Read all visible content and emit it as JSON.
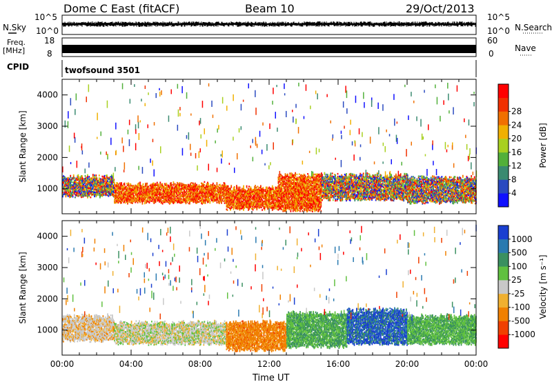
{
  "header": {
    "station": "Dome C East (fitACF)",
    "beam": "Beam 10",
    "date": "29/Oct/2013"
  },
  "labels": {
    "nsky": "N.Sky",
    "nsearch": "N.Search",
    "freq": "Freq.",
    "freq_unit": "[MHz]",
    "nave": "Nave",
    "cpid": "CPID",
    "cpid_name": "twofsound 3501",
    "noise_ticks": [
      "10^5",
      "10^0"
    ],
    "freq_ticks": [
      "18",
      "8"
    ],
    "nave_ticks": [
      "60",
      "0"
    ]
  },
  "chart_data": [
    {
      "type": "heatmap",
      "panel": "power",
      "title": "",
      "xlabel": "",
      "ylabel": "Slant Range [km]",
      "xlim": [
        0,
        24
      ],
      "ylim": [
        200,
        4500
      ],
      "y_ticks": [
        1000,
        2000,
        3000,
        4000
      ],
      "colorbar": {
        "label": "Power [dB]",
        "ticks": [
          "4",
          "8",
          "12",
          "16",
          "20",
          "24",
          "28"
        ],
        "colors": [
          "#1010ff",
          "#2a4ac0",
          "#3a8a70",
          "#52b03a",
          "#a8d020",
          "#f0b000",
          "#f07000",
          "#f03000",
          "#ff0000"
        ]
      },
      "bands": [
        {
          "t": [
            0.0,
            3.0
          ],
          "range": [
            700,
            1450
          ],
          "level": "mid"
        },
        {
          "t": [
            3.0,
            9.5
          ],
          "range": [
            500,
            1200
          ],
          "level": "high"
        },
        {
          "t": [
            9.5,
            12.5
          ],
          "range": [
            300,
            1100
          ],
          "level": "high"
        },
        {
          "t": [
            12.5,
            15.0
          ],
          "range": [
            250,
            1500
          ],
          "level": "high"
        },
        {
          "t": [
            15.0,
            20.0
          ],
          "range": [
            600,
            1500
          ],
          "level": "mixed"
        },
        {
          "t": [
            20.0,
            24.0
          ],
          "range": [
            500,
            1400
          ],
          "level": "mixed"
        }
      ]
    },
    {
      "type": "heatmap",
      "panel": "velocity",
      "title": "",
      "xlabel": "Time UT",
      "ylabel": "Slant Range [km]",
      "xlim": [
        0,
        24
      ],
      "ylim": [
        200,
        4500
      ],
      "x_ticks": [
        "00:00",
        "04:00",
        "08:00",
        "12:00",
        "16:00",
        "20:00",
        "00:00"
      ],
      "y_ticks": [
        1000,
        2000,
        3000,
        4000
      ],
      "colorbar": {
        "label": "Velocity [m s⁻¹]",
        "ticks": [
          "1000",
          "500",
          "100",
          "25",
          "-25",
          "-100",
          "-500",
          "-1000"
        ],
        "colors": [
          "#1a3fd0",
          "#2a7ab0",
          "#3a9060",
          "#60c040",
          "#c8c8c8",
          "#f0b030",
          "#f08000",
          "#f04000",
          "#ff0000"
        ]
      },
      "bands": [
        {
          "t": [
            0.0,
            3.0
          ],
          "range": [
            600,
            1500
          ],
          "level": "gray-orange"
        },
        {
          "t": [
            3.0,
            9.5
          ],
          "range": [
            500,
            1300
          ],
          "level": "gray-green"
        },
        {
          "t": [
            9.5,
            13.0
          ],
          "range": [
            300,
            1300
          ],
          "level": "orange"
        },
        {
          "t": [
            13.0,
            16.5
          ],
          "range": [
            400,
            1600
          ],
          "level": "green-blue"
        },
        {
          "t": [
            16.5,
            20.0
          ],
          "range": [
            500,
            1700
          ],
          "level": "blue"
        },
        {
          "t": [
            20.0,
            24.0
          ],
          "range": [
            500,
            1500
          ],
          "level": "green"
        }
      ]
    }
  ]
}
